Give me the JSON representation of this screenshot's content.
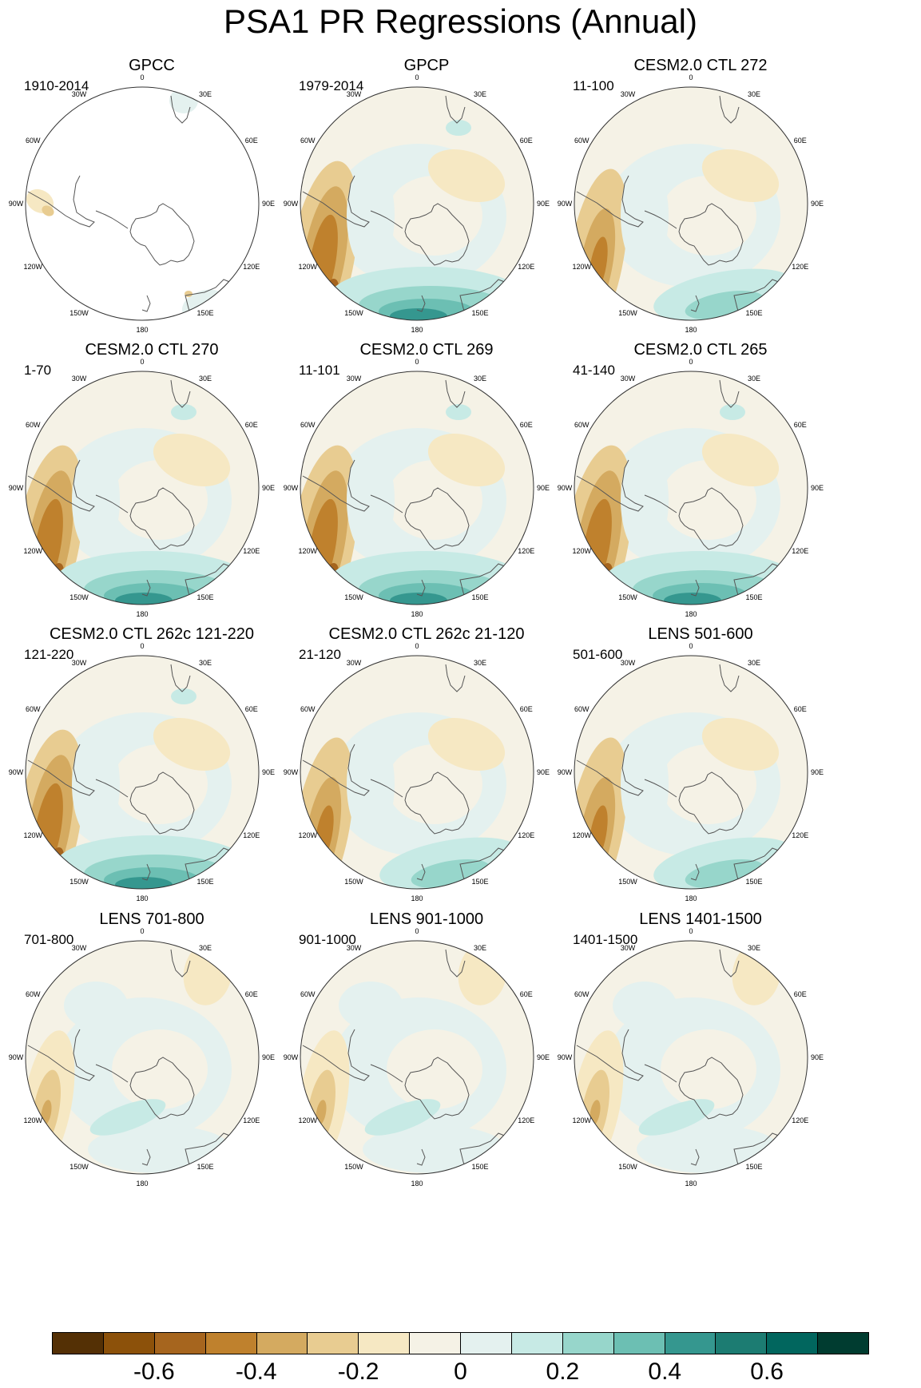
{
  "title": "PSA1 PR Regressions (Annual)",
  "panels": [
    {
      "title": "GPCC",
      "years": "1910-2014"
    },
    {
      "title": "GPCP",
      "years": "1979-2014"
    },
    {
      "title": "CESM2.0 CTL 272",
      "years": "11-100"
    },
    {
      "title": "CESM2.0 CTL 270",
      "years": "1-70"
    },
    {
      "title": "CESM2.0 CTL 269",
      "years": "11-101"
    },
    {
      "title": "CESM2.0 CTL 265",
      "years": "41-140"
    },
    {
      "title": "CESM2.0 CTL 262c 121-220",
      "years": "121-220"
    },
    {
      "title": "CESM2.0 CTL 262c 21-120",
      "years": "21-120"
    },
    {
      "title": "LENS 501-600",
      "years": "501-600"
    },
    {
      "title": "LENS 701-800",
      "years": "701-800"
    },
    {
      "title": "LENS 901-1000",
      "years": "901-1000"
    },
    {
      "title": "LENS 1401-1500",
      "years": "1401-1500"
    }
  ],
  "longitude_labels": [
    "0",
    "30E",
    "60E",
    "90E",
    "120E",
    "150E",
    "180",
    "150W",
    "120W",
    "90W",
    "60W",
    "30W"
  ],
  "colorbar": {
    "colors": [
      "#543005",
      "#8c510a",
      "#a6651e",
      "#bf812d",
      "#d4aa60",
      "#e8cc91",
      "#f6e8c3",
      "#f5f2e6",
      "#e4f1ef",
      "#c7eae5",
      "#97d6cb",
      "#6cbfb3",
      "#35978f",
      "#1c7c72",
      "#01665e",
      "#003c30"
    ],
    "tick_labels": [
      "-0.6",
      "-0.4",
      "-0.2",
      "0",
      "0.2",
      "0.4",
      "0.6"
    ],
    "tick_values": [
      -0.6,
      -0.4,
      -0.2,
      0,
      0.2,
      0.4,
      0.6
    ]
  },
  "chart_data": {
    "type": "heatmap",
    "title": "PSA1 PR Regressions (Annual)",
    "projection": "south polar stereographic",
    "color_levels": [
      -0.7,
      -0.6,
      -0.5,
      -0.4,
      -0.3,
      -0.2,
      -0.1,
      0,
      0.1,
      0.2,
      0.3,
      0.4,
      0.5,
      0.6,
      0.7
    ],
    "colorbar_range": [
      -0.8,
      0.8
    ]
  }
}
